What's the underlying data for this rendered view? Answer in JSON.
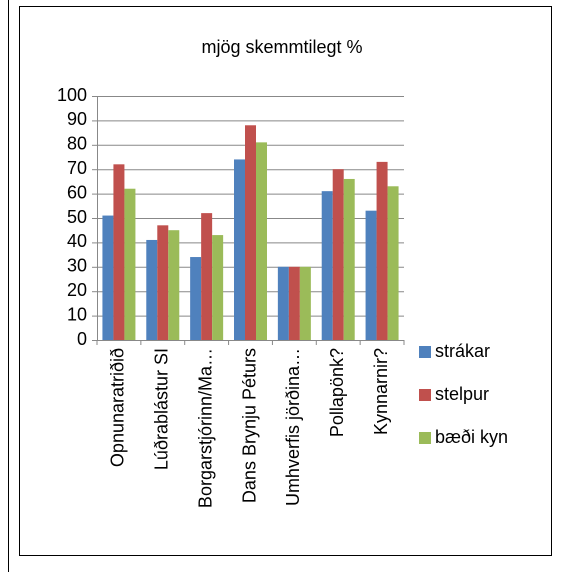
{
  "chart_data": {
    "type": "bar",
    "title": "mjög skemmtilegt %",
    "categories": [
      "Opnunaratriðið",
      "Lúðrablástur SI",
      "Borgarstjórinn/Ma…",
      "Dans Brynju Péturs",
      "Umhverfis jörðina…",
      "Pollapönk?",
      "Kynnarnir?"
    ],
    "series": [
      {
        "name": "strákar",
        "color": "#4f81bd",
        "values": [
          51,
          41,
          34,
          74,
          30,
          61,
          53
        ]
      },
      {
        "name": "stelpur",
        "color": "#c0504d",
        "values": [
          72,
          47,
          52,
          88,
          30,
          70,
          73
        ]
      },
      {
        "name": "bæði kyn",
        "color": "#9bbb59",
        "values": [
          62,
          45,
          43,
          81,
          30,
          66,
          63
        ]
      }
    ],
    "ylim": [
      0,
      100
    ],
    "yticks": [
      0,
      10,
      20,
      30,
      40,
      50,
      60,
      70,
      80,
      90,
      100
    ],
    "grid": true,
    "legend": "right"
  }
}
